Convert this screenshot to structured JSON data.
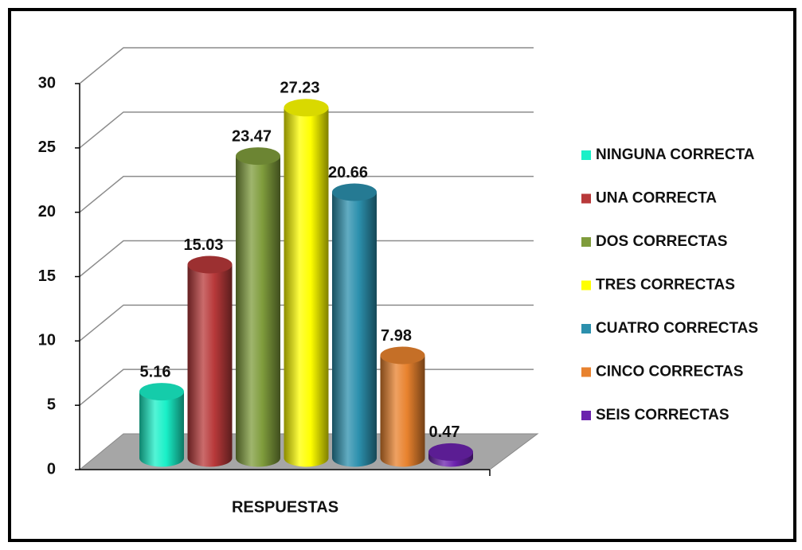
{
  "chart_data": {
    "type": "bar3d",
    "categories": [
      "RESPUESTAS"
    ],
    "series": [
      {
        "name": "NINGUNA CORRECTA",
        "color": "#19f0c8",
        "values": [
          5.16
        ]
      },
      {
        "name": "UNA CORRECTA",
        "color": "#b8393a",
        "values": [
          15.03
        ]
      },
      {
        "name": "DOS CORRECTAS",
        "color": "#7f9c3c",
        "values": [
          23.47
        ]
      },
      {
        "name": "TRES CORRECTAS",
        "color": "#ffff00",
        "values": [
          27.23
        ]
      },
      {
        "name": "CUATRO CORRECTAS",
        "color": "#2c90ad",
        "values": [
          20.66
        ]
      },
      {
        "name": "CINCO CORRECTAS",
        "color": "#e8822e",
        "values": [
          7.98
        ]
      },
      {
        "name": "SEIS CORRECTAS",
        "color": "#6b22ad",
        "values": [
          0.47
        ]
      }
    ],
    "ylim": [
      0,
      30
    ],
    "yticks": [
      0,
      5,
      10,
      15,
      20,
      25,
      30
    ],
    "grid": true,
    "legend": "right"
  }
}
